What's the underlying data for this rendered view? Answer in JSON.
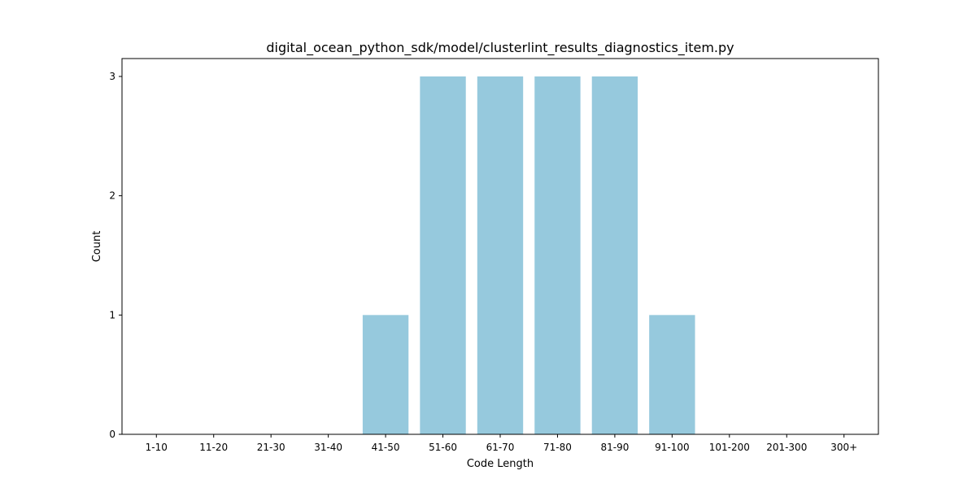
{
  "chart_data": {
    "type": "bar",
    "title": "digital_ocean_python_sdk/model/clusterlint_results_diagnostics_item.py",
    "xlabel": "Code Length",
    "ylabel": "Count",
    "categories": [
      "1-10",
      "11-20",
      "21-30",
      "31-40",
      "41-50",
      "51-60",
      "61-70",
      "71-80",
      "81-90",
      "91-100",
      "101-200",
      "201-300",
      "300+"
    ],
    "values": [
      0,
      0,
      0,
      0,
      1,
      3,
      3,
      3,
      3,
      1,
      0,
      0,
      0
    ],
    "ylim": [
      0,
      3.15
    ],
    "yticks": [
      0,
      1,
      2,
      3
    ],
    "grid": false,
    "legend": "none",
    "bar_color": "#96c9dd"
  }
}
